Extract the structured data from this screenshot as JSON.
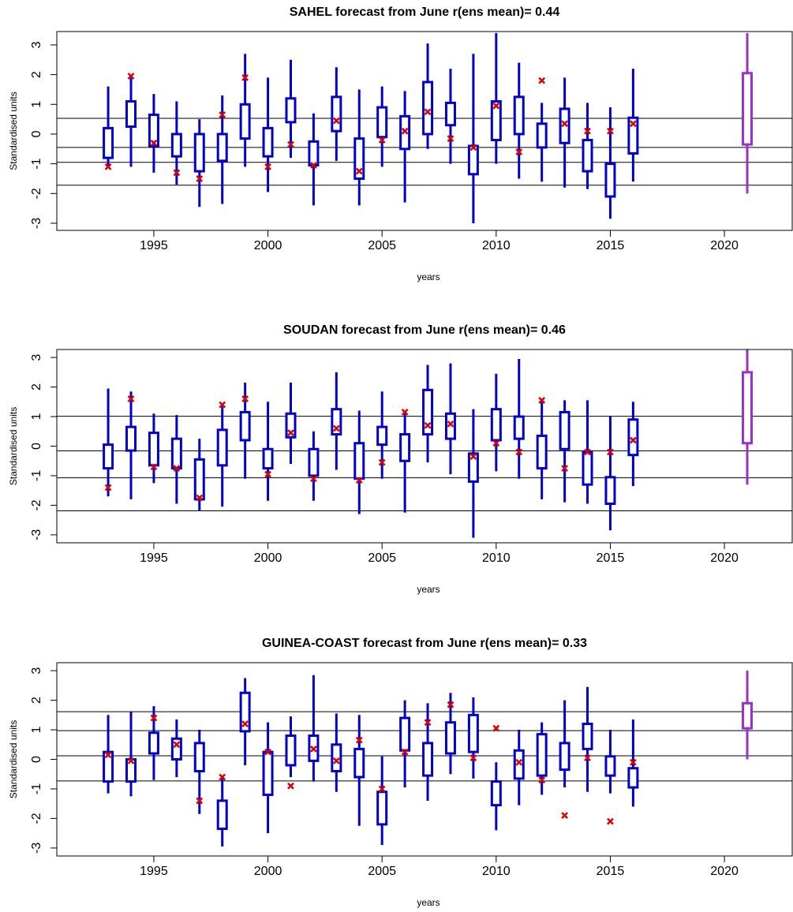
{
  "chart_data": [
    {
      "type": "box",
      "title": "SAHEL forecast from June r(ens mean)= 0.44",
      "x_label": "years",
      "y_label": "Standardised units",
      "x": [
        1993,
        1994,
        1995,
        1996,
        1997,
        1998,
        1999,
        2000,
        2001,
        2002,
        2003,
        2004,
        2005,
        2006,
        2007,
        2008,
        2009,
        2010,
        2011,
        2012,
        2013,
        2014,
        2015,
        2016,
        2021
      ],
      "whisker_low": [
        -1.1,
        -1.1,
        -1.3,
        -1.7,
        -2.45,
        -2.35,
        -1.1,
        -1.95,
        -0.8,
        -2.4,
        -0.9,
        -2.4,
        -1.1,
        -2.3,
        -0.5,
        -1.0,
        -3.0,
        -1.0,
        -1.5,
        -1.6,
        -1.8,
        -1.85,
        -2.85,
        -1.6,
        -2.0
      ],
      "q1": [
        -0.8,
        0.25,
        -0.4,
        -0.75,
        -1.25,
        -0.9,
        -0.15,
        -0.75,
        0.4,
        -1.05,
        0.1,
        -1.5,
        -0.1,
        -0.5,
        0.0,
        0.3,
        -1.35,
        -0.2,
        0.0,
        -0.45,
        -0.3,
        -1.25,
        -2.1,
        -0.65,
        -0.35
      ],
      "q3": [
        0.2,
        1.1,
        0.65,
        0.0,
        0.0,
        0.0,
        1.0,
        0.2,
        1.2,
        -0.25,
        1.25,
        -0.15,
        0.9,
        0.6,
        1.75,
        1.05,
        -0.4,
        1.1,
        1.25,
        0.35,
        0.85,
        -0.2,
        -1.0,
        0.55,
        2.05
      ],
      "whisker_high": [
        1.6,
        2.0,
        1.35,
        1.1,
        0.5,
        1.3,
        2.7,
        1.9,
        2.5,
        0.7,
        2.25,
        1.5,
        1.6,
        1.45,
        3.05,
        2.2,
        2.7,
        3.4,
        2.4,
        1.05,
        1.9,
        1.05,
        0.9,
        2.2,
        3.4
      ],
      "observed": [
        -1.1,
        1.95,
        -0.3,
        -1.3,
        -1.5,
        0.65,
        1.9,
        -1.1,
        -0.35,
        -1.05,
        0.45,
        -1.25,
        -0.2,
        0.1,
        0.75,
        -0.15,
        -0.45,
        0.95,
        -0.6,
        1.8,
        0.35,
        0.1,
        0.1,
        0.35,
        null
      ],
      "box_colors": [
        "#0000cd",
        "#0000cd",
        "#0000cd",
        "#0000cd",
        "#0000cd",
        "#0000cd",
        "#0000cd",
        "#0000cd",
        "#0000cd",
        "#0000cd",
        "#0000cd",
        "#0000cd",
        "#0000cd",
        "#0000cd",
        "#0000cd",
        "#0000cd",
        "#0000cd",
        "#0000cd",
        "#0000cd",
        "#0000cd",
        "#0000cd",
        "#0000cd",
        "#0000cd",
        "#0000cd",
        "#9932cc"
      ],
      "observed_color": "#dd0000",
      "hlines": [
        0.53,
        -0.45,
        -0.95,
        -1.72
      ],
      "xlim": [
        1990.75,
        2022.97
      ],
      "xticks": [
        1995,
        2000,
        2005,
        2010,
        2015,
        2020
      ],
      "ylim": [
        -3.24,
        3.45
      ],
      "yticks": [
        -3,
        -2,
        -1,
        0,
        1,
        2,
        3
      ]
    },
    {
      "type": "box",
      "title": "SOUDAN forecast from June r(ens mean)= 0.46",
      "x_label": "years",
      "y_label": "Standardised units",
      "x": [
        1993,
        1994,
        1995,
        1996,
        1997,
        1998,
        1999,
        2000,
        2001,
        2002,
        2003,
        2004,
        2005,
        2006,
        2007,
        2008,
        2009,
        2010,
        2011,
        2012,
        2013,
        2014,
        2015,
        2016,
        2021
      ],
      "whisker_low": [
        -1.7,
        -1.8,
        -1.25,
        -1.95,
        -2.2,
        -2.05,
        -1.1,
        -1.85,
        -0.6,
        -1.85,
        -0.8,
        -2.3,
        -1.1,
        -2.25,
        -0.55,
        -0.95,
        -3.1,
        -0.85,
        -1.1,
        -1.8,
        -1.9,
        -1.95,
        -2.85,
        -1.35,
        -1.3
      ],
      "q1": [
        -0.75,
        -0.15,
        -0.65,
        -0.75,
        -1.8,
        -0.65,
        0.2,
        -0.75,
        0.3,
        -1.0,
        0.4,
        -1.1,
        0.05,
        -0.5,
        0.4,
        0.25,
        -1.2,
        0.2,
        0.25,
        -0.75,
        -0.1,
        -1.3,
        -1.95,
        -0.3,
        0.1
      ],
      "q3": [
        0.05,
        0.65,
        0.45,
        0.25,
        -0.45,
        0.55,
        1.15,
        -0.1,
        1.1,
        -0.1,
        1.25,
        0.1,
        0.65,
        0.4,
        1.9,
        1.1,
        -0.25,
        1.25,
        1.0,
        0.35,
        1.15,
        -0.2,
        -1.05,
        0.9,
        2.5
      ],
      "whisker_high": [
        1.95,
        1.85,
        1.1,
        1.05,
        0.25,
        1.35,
        2.15,
        1.5,
        2.15,
        0.5,
        2.5,
        1.2,
        1.85,
        1.2,
        2.75,
        2.8,
        1.25,
        2.45,
        2.95,
        1.55,
        1.55,
        1.55,
        1.0,
        1.5,
        3.4
      ],
      "observed": [
        -1.4,
        1.6,
        -0.7,
        -0.75,
        -1.75,
        1.4,
        1.6,
        -0.95,
        0.45,
        -1.1,
        0.6,
        -1.15,
        -0.55,
        1.15,
        0.7,
        0.75,
        -0.35,
        0.1,
        -0.2,
        1.55,
        -0.75,
        -0.2,
        -0.2,
        0.2,
        null
      ],
      "box_colors": [
        "#0000cd",
        "#0000cd",
        "#0000cd",
        "#0000cd",
        "#0000cd",
        "#0000cd",
        "#0000cd",
        "#0000cd",
        "#0000cd",
        "#0000cd",
        "#0000cd",
        "#0000cd",
        "#0000cd",
        "#0000cd",
        "#0000cd",
        "#0000cd",
        "#0000cd",
        "#0000cd",
        "#0000cd",
        "#0000cd",
        "#0000cd",
        "#0000cd",
        "#0000cd",
        "#0000cd",
        "#9932cc"
      ],
      "observed_color": "#dd0000",
      "hlines": [
        1.01,
        -0.16,
        -1.07,
        -2.19
      ],
      "xlim": [
        1990.75,
        2022.97
      ],
      "xticks": [
        1995,
        2000,
        2005,
        2010,
        2015,
        2020
      ],
      "ylim": [
        -3.27,
        3.27
      ],
      "yticks": [
        -3,
        -2,
        -1,
        0,
        1,
        2,
        3
      ]
    },
    {
      "type": "box",
      "title": "GUINEA-COAST forecast from June r(ens mean)= 0.33",
      "x_label": "years",
      "y_label": "Standardised units",
      "x": [
        1993,
        1994,
        1995,
        1996,
        1997,
        1998,
        1999,
        2000,
        2001,
        2002,
        2003,
        2004,
        2005,
        2006,
        2007,
        2008,
        2009,
        2010,
        2011,
        2012,
        2013,
        2014,
        2015,
        2016,
        2021
      ],
      "whisker_low": [
        -1.15,
        -1.25,
        -0.7,
        -0.6,
        -1.85,
        -2.95,
        -0.2,
        -2.5,
        -0.6,
        -0.75,
        -1.1,
        -2.25,
        -2.9,
        -0.95,
        -1.4,
        -0.5,
        -0.65,
        -2.4,
        -1.55,
        -1.2,
        -0.95,
        -1.1,
        -1.15,
        -1.6,
        0.0
      ],
      "q1": [
        -0.75,
        -0.75,
        0.2,
        0.0,
        -0.4,
        -2.35,
        0.95,
        -1.2,
        -0.2,
        -0.05,
        -0.4,
        -0.6,
        -2.2,
        0.3,
        -0.55,
        0.2,
        0.25,
        -1.55,
        -0.65,
        -0.55,
        -0.35,
        0.35,
        -0.55,
        -0.95,
        1.05
      ],
      "q3": [
        0.25,
        0.0,
        0.9,
        0.7,
        0.55,
        -1.4,
        2.25,
        0.25,
        0.8,
        0.8,
        0.5,
        0.35,
        -1.1,
        1.4,
        0.55,
        1.25,
        1.5,
        -0.75,
        0.3,
        0.85,
        0.55,
        1.2,
        0.1,
        -0.3,
        1.9
      ],
      "whisker_high": [
        1.5,
        1.6,
        1.8,
        1.35,
        1.0,
        -0.6,
        2.75,
        1.25,
        1.45,
        2.85,
        1.55,
        1.5,
        0.1,
        2.0,
        1.9,
        2.25,
        2.1,
        -0.1,
        1.0,
        1.25,
        2.0,
        2.45,
        1.0,
        1.35,
        3.0
      ],
      "observed": [
        0.15,
        -0.05,
        1.4,
        0.5,
        -1.4,
        -0.6,
        1.2,
        0.25,
        -0.9,
        0.35,
        -0.05,
        0.65,
        -1.0,
        0.25,
        1.25,
        1.85,
        0.05,
        1.05,
        -0.1,
        -0.7,
        -1.9,
        0.05,
        -2.1,
        -0.1,
        null
      ],
      "box_colors": [
        "#0000cd",
        "#0000cd",
        "#0000cd",
        "#0000cd",
        "#0000cd",
        "#0000cd",
        "#0000cd",
        "#0000cd",
        "#0000cd",
        "#0000cd",
        "#0000cd",
        "#0000cd",
        "#0000cd",
        "#0000cd",
        "#0000cd",
        "#0000cd",
        "#0000cd",
        "#0000cd",
        "#0000cd",
        "#0000cd",
        "#0000cd",
        "#0000cd",
        "#0000cd",
        "#0000cd",
        "#9932cc"
      ],
      "observed_color": "#dd0000",
      "hlines": [
        1.61,
        0.97,
        0.12,
        -0.73
      ],
      "xlim": [
        1990.75,
        2022.97
      ],
      "xticks": [
        1995,
        2000,
        2005,
        2010,
        2015,
        2020
      ],
      "ylim": [
        -3.27,
        3.27
      ],
      "yticks": [
        -3,
        -2,
        -1,
        0,
        1,
        2,
        3
      ]
    }
  ]
}
